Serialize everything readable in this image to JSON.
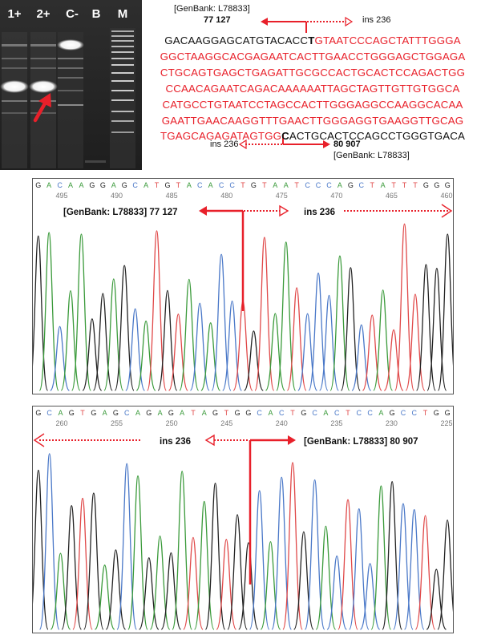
{
  "gel": {
    "lanes": [
      "1+",
      "2+",
      "C-",
      "B",
      "M"
    ],
    "arrow_color": "#e8202a"
  },
  "sequence": {
    "genbank_top": "[GenBank: L78833]",
    "pos_top": "77 127",
    "ins_top": "ins 236",
    "lines": [
      {
        "black_pre": "GACAAGGAGCATGTACACC",
        "bold": "T",
        "red": "GTAATCCCAGCTATTTGGGA",
        "black_post": ""
      },
      {
        "black_pre": "",
        "bold": "",
        "red": "GGCTAAGGCACGAGAATCACTTGAACCTGGGAGCTGGAGA",
        "black_post": ""
      },
      {
        "black_pre": "",
        "bold": "",
        "red": "CTGCAGTGAGCTGAGATTGCGCCACTGCACTCCAGACTGG",
        "black_post": ""
      },
      {
        "black_pre": "",
        "bold": "",
        "red": "CCAACAGAATCAGACAAAAAATTAGCTAGTTGTTGTGGCA",
        "black_post": ""
      },
      {
        "black_pre": "",
        "bold": "",
        "red": "CATGCCTGTAATCCTAGCCACTTGGGAGGCCAAGGCACAA",
        "black_post": ""
      },
      {
        "black_pre": "",
        "bold": "",
        "red": "GAATTGAACAAGGTTTGAACTTGGGAGGTGAAGGTTGCAG",
        "black_post": ""
      },
      {
        "black_pre": "",
        "bold": "",
        "red": "TGAGCAGAGATAGTGG",
        "bold2": "C",
        "black_post": "ACTGCACTCCAGCCTGGGTGACA"
      }
    ],
    "ins_bottom": "ins 236",
    "pos_bottom": "80 907",
    "genbank_bottom": "[GenBank: L78833]"
  },
  "trace1": {
    "bases": "GACAAGGAGCATGTACACCTGTAATCCCAGCTATTTGGG",
    "ticks": [
      "495",
      "490",
      "485",
      "480",
      "475",
      "470",
      "465",
      "460"
    ],
    "tick_partial_left": "0",
    "genbank_label": "[GenBank: L78833]  77 127",
    "ins_label": "ins 236"
  },
  "trace2": {
    "bases": "GCAGTGAGCAGAGATAGTGGCACTGCACTCCAGCCTGG",
    "ticks": [
      "260",
      "255",
      "250",
      "245",
      "240",
      "235",
      "230",
      "225"
    ],
    "ins_label": "ins  236",
    "genbank_label": "[GenBank: L78833]  80 907"
  },
  "colors": {
    "red": "#e8202a",
    "trace_A": "#3a9a3a",
    "trace_C": "#4a78c8",
    "trace_G": "#222222",
    "trace_T": "#e04848"
  }
}
